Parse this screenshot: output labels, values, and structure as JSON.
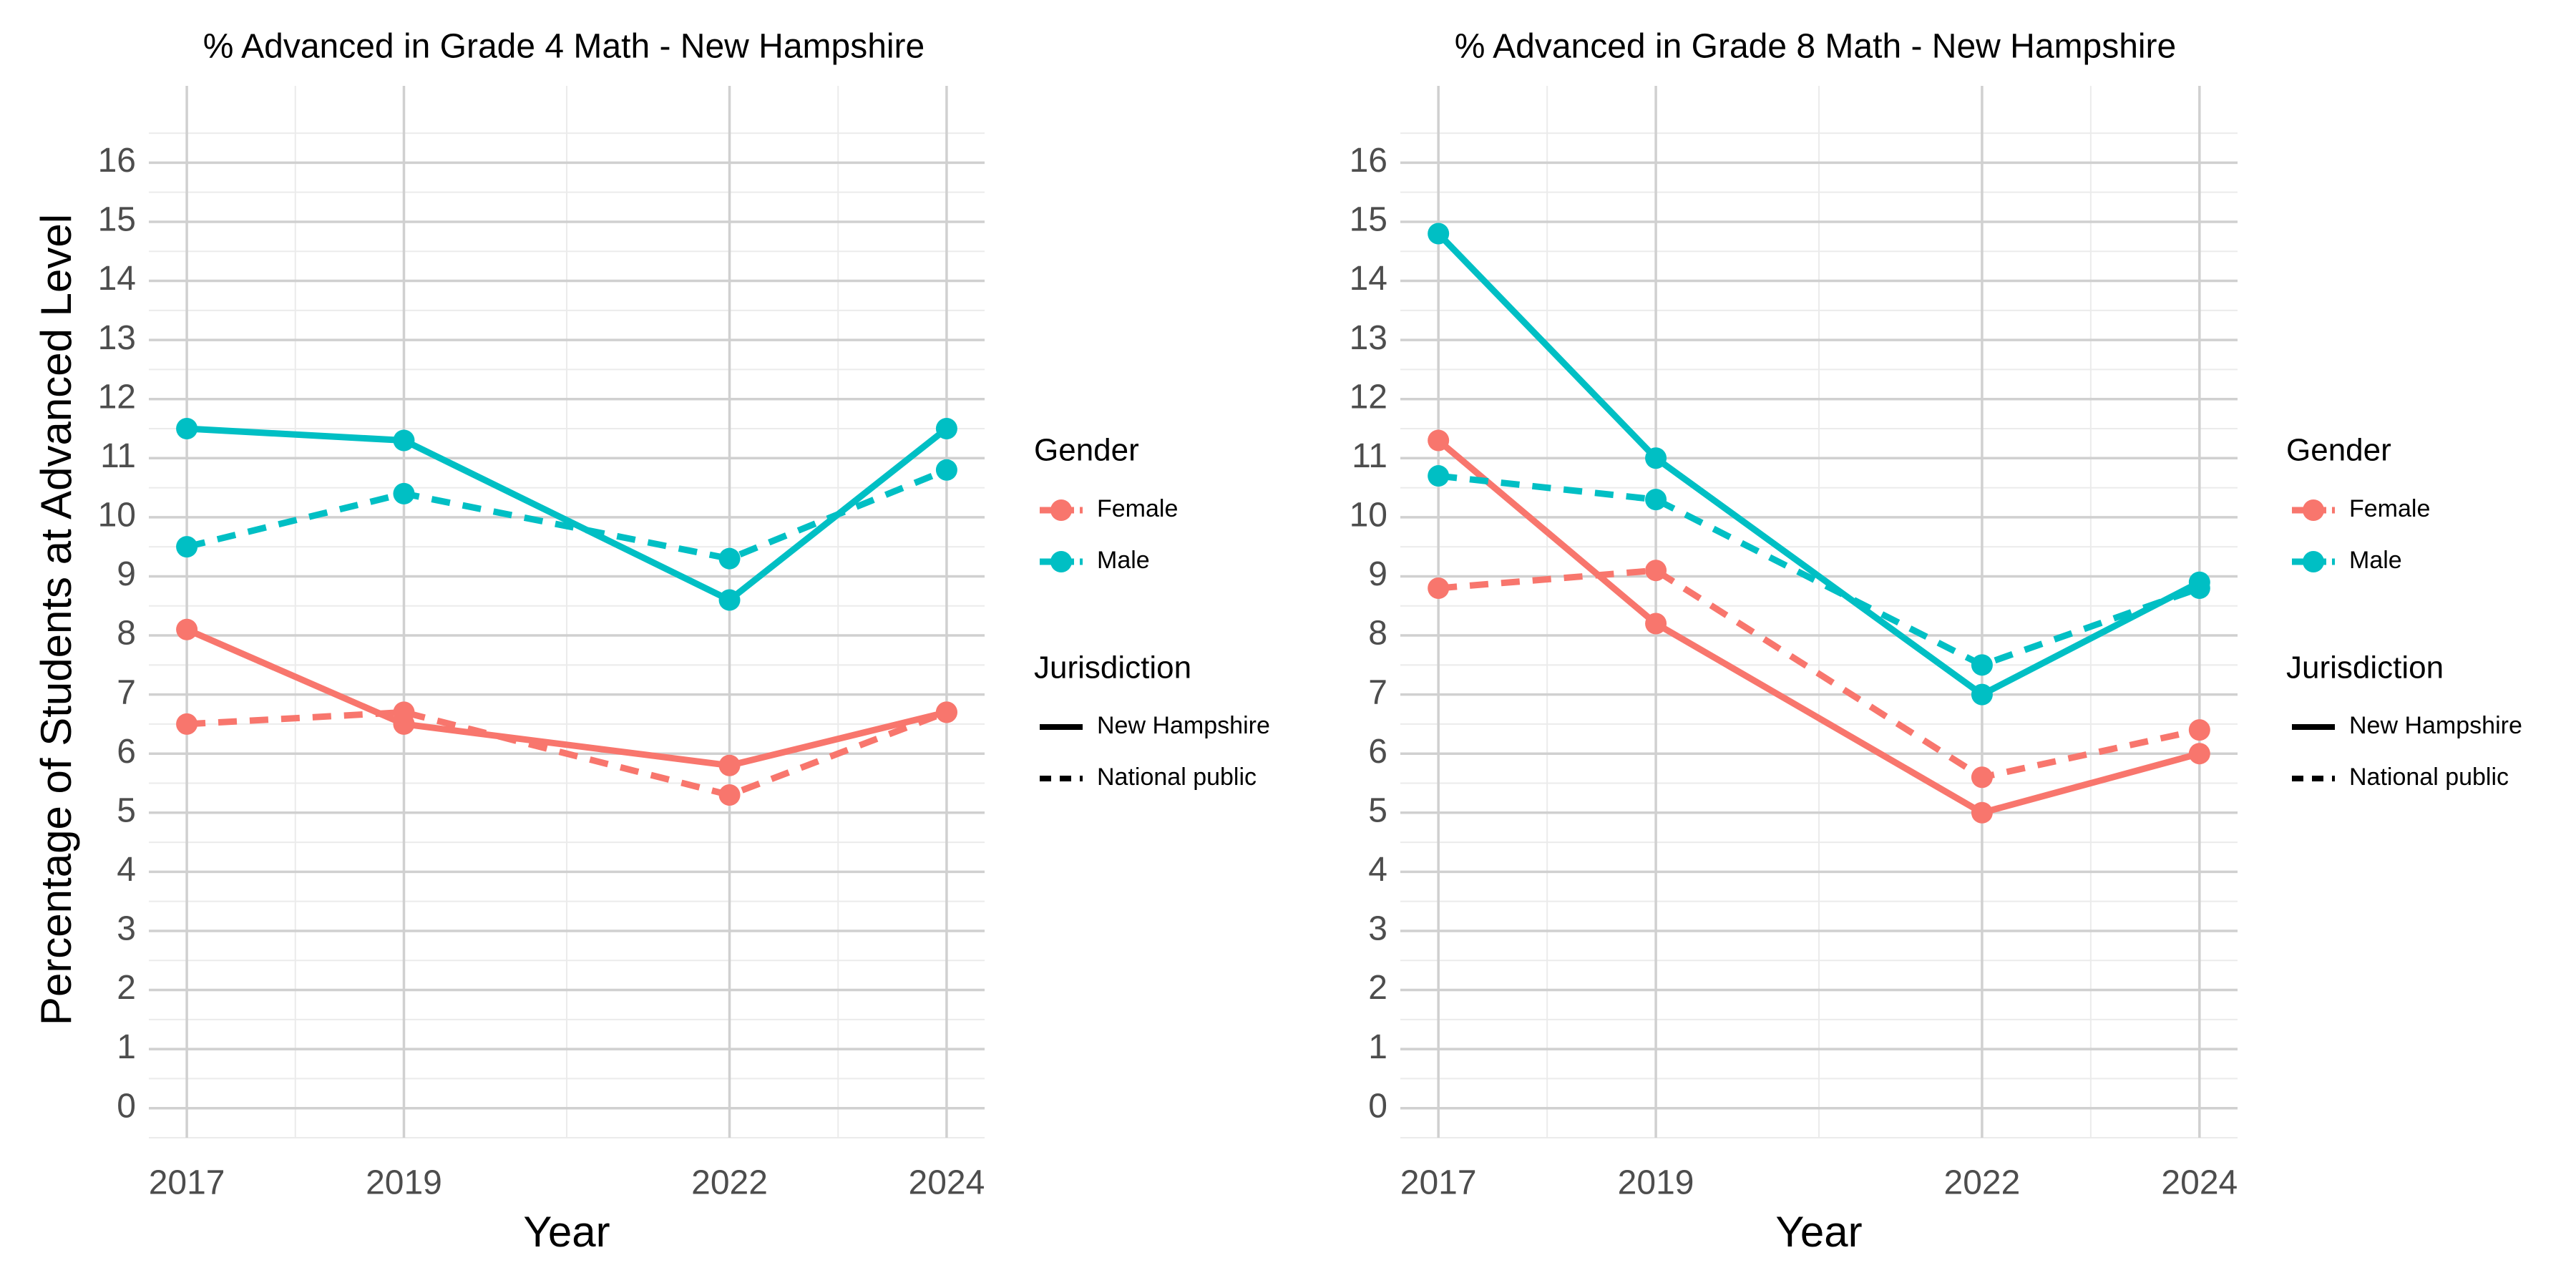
{
  "shared": {
    "ylabel": "Percentage of Students at Advanced Level",
    "xlabel": "Year",
    "legend": {
      "gender_title": "Gender",
      "gender_items": [
        {
          "label": "Female",
          "color": "#F8766D"
        },
        {
          "label": "Male",
          "color": "#00BFC4"
        }
      ],
      "jurisdiction_title": "Jurisdiction",
      "jurisdiction_items": [
        {
          "label": "New Hampshire",
          "linetype": "solid"
        },
        {
          "label": "National public",
          "linetype": "dashed"
        }
      ]
    }
  },
  "chart_data": [
    {
      "type": "line",
      "title": "% Advanced in Grade 4 Math - New Hampshire",
      "xlabel": "Year",
      "ylabel": "Percentage of Students at Advanced Level",
      "x": [
        2017,
        2019,
        2022,
        2024
      ],
      "xlim": [
        2016.65,
        2024.35
      ],
      "ylim": [
        -0.5,
        17.3
      ],
      "yticks": [
        0,
        1,
        2,
        3,
        4,
        5,
        6,
        7,
        8,
        9,
        10,
        11,
        12,
        13,
        14,
        15,
        16
      ],
      "grid": true,
      "legend_position": "right",
      "series": [
        {
          "name": "Female - New Hampshire",
          "gender": "Female",
          "jurisdiction": "New Hampshire",
          "color": "#F8766D",
          "linetype": "solid",
          "values": [
            8.1,
            6.5,
            5.8,
            6.7
          ]
        },
        {
          "name": "Female - National public",
          "gender": "Female",
          "jurisdiction": "National public",
          "color": "#F8766D",
          "linetype": "dashed",
          "values": [
            6.5,
            6.7,
            5.3,
            6.7
          ]
        },
        {
          "name": "Male - New Hampshire",
          "gender": "Male",
          "jurisdiction": "New Hampshire",
          "color": "#00BFC4",
          "linetype": "solid",
          "values": [
            11.5,
            11.3,
            8.6,
            11.5
          ]
        },
        {
          "name": "Male - National public",
          "gender": "Male",
          "jurisdiction": "National public",
          "color": "#00BFC4",
          "linetype": "dashed",
          "values": [
            9.5,
            10.4,
            9.3,
            10.8
          ]
        }
      ]
    },
    {
      "type": "line",
      "title": "% Advanced in Grade 8 Math - New Hampshire",
      "xlabel": "Year",
      "ylabel": "",
      "x": [
        2017,
        2019,
        2022,
        2024
      ],
      "xlim": [
        2016.65,
        2024.35
      ],
      "ylim": [
        -0.5,
        17.3
      ],
      "yticks": [
        0,
        1,
        2,
        3,
        4,
        5,
        6,
        7,
        8,
        9,
        10,
        11,
        12,
        13,
        14,
        15,
        16
      ],
      "grid": true,
      "legend_position": "right",
      "series": [
        {
          "name": "Female - New Hampshire",
          "gender": "Female",
          "jurisdiction": "New Hampshire",
          "color": "#F8766D",
          "linetype": "solid",
          "values": [
            11.3,
            8.2,
            5.0,
            6.0
          ]
        },
        {
          "name": "Female - National public",
          "gender": "Female",
          "jurisdiction": "National public",
          "color": "#F8766D",
          "linetype": "dashed",
          "values": [
            8.8,
            9.1,
            5.6,
            6.4
          ]
        },
        {
          "name": "Male - New Hampshire",
          "gender": "Male",
          "jurisdiction": "New Hampshire",
          "color": "#00BFC4",
          "linetype": "solid",
          "values": [
            14.8,
            11.0,
            7.0,
            8.9
          ]
        },
        {
          "name": "Male - National public",
          "gender": "Male",
          "jurisdiction": "National public",
          "color": "#00BFC4",
          "linetype": "dashed",
          "values": [
            10.7,
            10.3,
            7.5,
            8.8
          ]
        }
      ]
    }
  ]
}
